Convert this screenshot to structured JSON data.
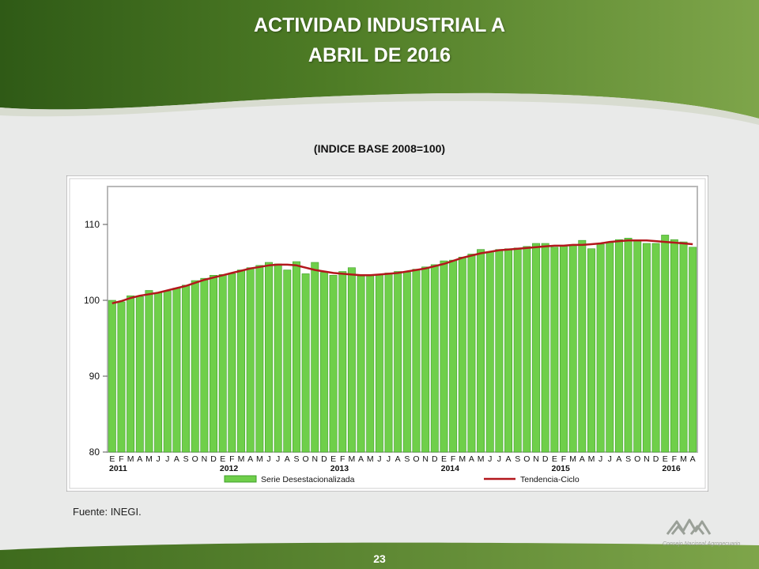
{
  "slide": {
    "title_line1": "ACTIVIDAD INDUSTRIAL A",
    "title_line2": "ABRIL DE 2016",
    "subtitle": "(INDICE BASE 2008=100)",
    "source": "Fuente: INEGI.",
    "page_number": "23",
    "logo_text": "Consejo Nacional Agropecuario"
  },
  "colors": {
    "header_green_dark": "#2f5a16",
    "header_green_light": "#6f9a3a",
    "bar_fill": "#6fcf4a",
    "bar_stroke": "#3f9f2a",
    "trend_line": "#b3171c"
  },
  "chart_data": {
    "type": "bar",
    "ylim": [
      80,
      115
    ],
    "yticks": [
      80,
      90,
      100,
      110
    ],
    "grid": false,
    "legend_position": "bottom",
    "month_labels": [
      "E",
      "F",
      "M",
      "A",
      "M",
      "J",
      "J",
      "A",
      "S",
      "O",
      "N",
      "D",
      "E",
      "F",
      "M",
      "A",
      "M",
      "J",
      "J",
      "A",
      "S",
      "O",
      "N",
      "D",
      "E",
      "F",
      "M",
      "A",
      "M",
      "J",
      "J",
      "A",
      "S",
      "O",
      "N",
      "D",
      "E",
      "F",
      "M",
      "A",
      "M",
      "J",
      "J",
      "A",
      "S",
      "O",
      "N",
      "D",
      "E",
      "F",
      "M",
      "A",
      "M",
      "J",
      "J",
      "A",
      "S",
      "O",
      "N",
      "D",
      "E",
      "F",
      "M",
      "A"
    ],
    "year_labels": [
      {
        "label": "2011",
        "index": 0
      },
      {
        "label": "2012",
        "index": 12
      },
      {
        "label": "2013",
        "index": 24
      },
      {
        "label": "2014",
        "index": 36
      },
      {
        "label": "2015",
        "index": 48
      },
      {
        "label": "2016",
        "index": 60
      }
    ],
    "series": [
      {
        "name": "Serie Desestacionalizada",
        "kind": "bar",
        "values": [
          100.0,
          99.8,
          100.6,
          100.5,
          101.3,
          101.0,
          101.2,
          101.6,
          102.0,
          102.6,
          102.9,
          103.3,
          103.4,
          103.5,
          104.0,
          104.3,
          104.6,
          105.0,
          104.8,
          104.0,
          105.1,
          103.5,
          105.0,
          103.7,
          103.3,
          103.8,
          104.3,
          103.2,
          103.3,
          103.4,
          103.6,
          103.8,
          103.7,
          104.1,
          104.4,
          104.7,
          105.2,
          105.3,
          105.7,
          106.1,
          106.7,
          106.4,
          106.7,
          106.8,
          106.9,
          107.1,
          107.5,
          107.5,
          107.0,
          107.2,
          107.2,
          107.9,
          106.8,
          107.4,
          107.6,
          108.0,
          108.2,
          107.8,
          107.5,
          107.5,
          108.6,
          108.0,
          107.7,
          107.0
        ]
      },
      {
        "name": "Tendencia-Ciclo",
        "kind": "line",
        "values": [
          99.6,
          99.9,
          100.3,
          100.6,
          100.8,
          101.0,
          101.3,
          101.6,
          101.9,
          102.3,
          102.7,
          103.0,
          103.3,
          103.6,
          103.9,
          104.2,
          104.4,
          104.6,
          104.7,
          104.7,
          104.6,
          104.3,
          104.0,
          103.8,
          103.6,
          103.5,
          103.4,
          103.3,
          103.3,
          103.4,
          103.5,
          103.6,
          103.8,
          104.0,
          104.2,
          104.5,
          104.8,
          105.2,
          105.6,
          105.9,
          106.2,
          106.4,
          106.6,
          106.7,
          106.8,
          106.9,
          107.0,
          107.1,
          107.2,
          107.2,
          107.3,
          107.3,
          107.4,
          107.5,
          107.7,
          107.8,
          107.9,
          107.9,
          107.9,
          107.8,
          107.7,
          107.6,
          107.5,
          107.4
        ]
      }
    ]
  }
}
